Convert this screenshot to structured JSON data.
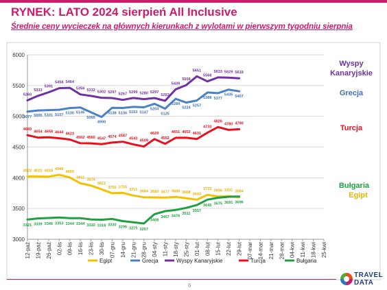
{
  "header": {
    "title": "RYNEK: LATO 2024 sierpień All Inclusive",
    "subtitle": "Średnie ceny wycieczek na głównych kierunkach z wylotami w pierwszym tygodniu sierpnia"
  },
  "footer": {
    "page_number": "6",
    "logo_line1": "TRAVEL",
    "logo_line2": "DATA"
  },
  "chart_data": {
    "type": "line",
    "categories": [
      "12-paź",
      "19-paź",
      "26-paź",
      "02-lis",
      "09-lis",
      "16-lis",
      "23-lis",
      "30-lis",
      "07-gru",
      "14-gru",
      "21-gru",
      "28-gru",
      "04-sty",
      "11-sty",
      "18-sty",
      "25-sty",
      "01-lut",
      "08-lut",
      "15-lut",
      "22-lut",
      "29-lut",
      "07-mar",
      "14-mar",
      "21-mar",
      "28-mar",
      "04-kwi",
      "11-kwi",
      "18-kwi",
      "25-kwi"
    ],
    "y_ticks": [
      "3000",
      "3500",
      "4000",
      "4500",
      "5000",
      "5500",
      "6000"
    ],
    "ylim": [
      3000,
      6000
    ],
    "grid": true,
    "legend_position": "bottom",
    "series": [
      {
        "name": "Egipt",
        "color": "#f2c200",
        "label_color": "#e8b400",
        "side_label": "Egipt",
        "x": [
          0,
          1,
          2,
          3,
          4,
          5,
          6,
          7,
          8,
          9,
          10,
          11,
          12,
          13,
          14,
          15,
          16,
          17,
          18,
          19,
          20
        ],
        "values": [
          4022,
          4022,
          4018,
          4049,
          4005,
          3911,
          3874,
          3812,
          3750,
          3755,
          3711,
          3684,
          3680,
          3677,
          3688,
          3668,
          3643,
          3723,
          3696,
          3701,
          3684
        ],
        "labels": [
          "4022",
          "4022",
          "4018",
          "4049",
          "4005",
          "3911",
          "3874",
          "3812",
          "3750",
          "3755",
          "3711",
          "3684",
          "3680",
          "3677",
          "3688",
          "3668",
          "3643",
          "3723",
          "3696",
          "3701",
          "3684"
        ]
      },
      {
        "name": "Grecja",
        "color": "#4a80c4",
        "label_color": "#3c6fb6",
        "side_label": "Grecja",
        "x": [
          0,
          1,
          2,
          3,
          4,
          5,
          6,
          7,
          8,
          9,
          10,
          11,
          12,
          13,
          14,
          15,
          16,
          17,
          18,
          19,
          20
        ],
        "values": [
          5077,
          5095,
          5101,
          5107,
          5135,
          5145,
          5065,
          4990,
          5138,
          5136,
          5153,
          5147,
          5204,
          5125,
          5284,
          5224,
          5257,
          5388,
          5377,
          5435,
          5407
        ],
        "labels": [
          "5077",
          "5095",
          "5101",
          "5107",
          "5135",
          "5145",
          "5065",
          "4990",
          "5138",
          "5136",
          "5153",
          "5147",
          "5204",
          "5125",
          "5284",
          "5224",
          "5257",
          "5388",
          "5377",
          "5435",
          "5407"
        ]
      },
      {
        "name": "Wyspy Kanaryjskie",
        "color": "#7030a0",
        "label_color": "#7030a0",
        "side_label": "Wyspy Kanaryjskie",
        "x": [
          0,
          1,
          2,
          3,
          4,
          5,
          6,
          7,
          8,
          9,
          10,
          11,
          12,
          13,
          14,
          15,
          16,
          17,
          18,
          19,
          20
        ],
        "values": [
          5260,
          5333,
          5391,
          5458,
          5464,
          5356,
          5332,
          5302,
          5297,
          5267,
          5299,
          5280,
          5297,
          5253,
          5439,
          5508,
          5651,
          5568,
          5633,
          5629,
          5619
        ],
        "labels": [
          "5260",
          "5333",
          "5391",
          "5458",
          "5464",
          "5356",
          "5332",
          "5302",
          "5297",
          "5267",
          "5299",
          "5280",
          "5297",
          "5253",
          "5439",
          "5508",
          "5651",
          "5568",
          "5633",
          "5629",
          "5619"
        ]
      },
      {
        "name": "Turcja",
        "color": "#e8101b",
        "label_color": "#e8101b",
        "side_label": "Turcja",
        "x": [
          0,
          1,
          2,
          3,
          4,
          5,
          6,
          7,
          8,
          9,
          10,
          11,
          12,
          13,
          14,
          15,
          16,
          17,
          18,
          19,
          20
        ],
        "values": [
          4693,
          4654,
          4658,
          4644,
          4623,
          4562,
          4560,
          4547,
          4574,
          4587,
          4543,
          4509,
          4629,
          4552,
          4651,
          4652,
          4631,
          4733,
          4826,
          4780,
          4790
        ],
        "labels": [
          "4693",
          "4654",
          "4658",
          "4644",
          "4623",
          "4562",
          "4560",
          "4547",
          "4574",
          "4587",
          "4543",
          "4509",
          "4629",
          "4552",
          "4651",
          "4652",
          "4631",
          "4733",
          "4826",
          "4780",
          "4790"
        ]
      },
      {
        "name": "Bułgaria",
        "color": "#1fa040",
        "label_color": "#1fa040",
        "side_label": "Bułgaria",
        "x": [
          0,
          1,
          2,
          3,
          4,
          5,
          6,
          7,
          8,
          9,
          10,
          11,
          12,
          13,
          14,
          15,
          16,
          17,
          18,
          19,
          20
        ],
        "values": [
          3321,
          3339,
          3346,
          3353,
          3344,
          3344,
          3322,
          3318,
          3330,
          3296,
          3275,
          3257,
          3408,
          3457,
          3476,
          3511,
          3557,
          3645,
          3675,
          3691,
          3696
        ],
        "labels": [
          "3321",
          "3339",
          "3346",
          "3353",
          "3344",
          "3344",
          "3322",
          "3318",
          "3330",
          "3296",
          "3275",
          "3257",
          "3408",
          "3457",
          "3476",
          "3511",
          "3557",
          "3645",
          "3675",
          "3691",
          "3696"
        ]
      }
    ]
  }
}
